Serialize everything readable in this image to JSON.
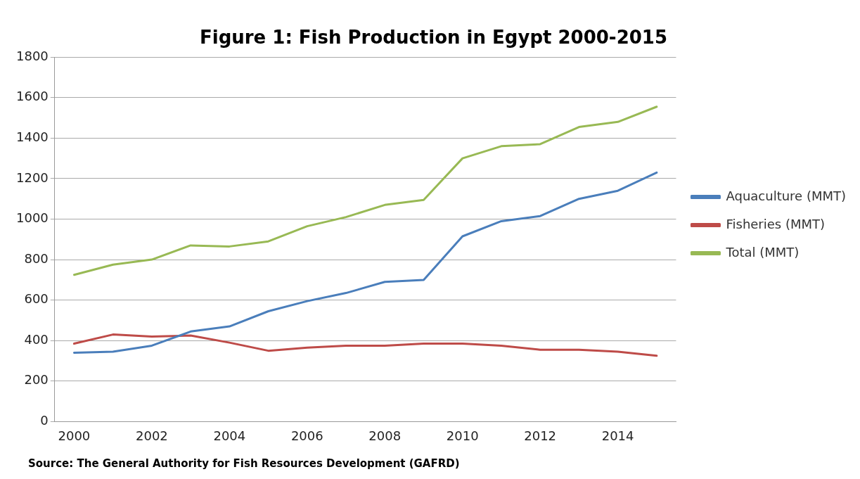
{
  "chart_data": {
    "type": "line",
    "title": "Figure 1: Fish Production in Egypt 2000-2015",
    "categories": [
      "2000",
      null,
      "2002",
      null,
      "2004",
      null,
      "2006",
      null,
      "2008",
      null,
      "2010",
      null,
      "2012",
      null,
      "2014",
      null
    ],
    "series": [
      {
        "name": "Aquaculture (MMT)",
        "color": "#4a7ebb",
        "values": [
          340,
          345,
          375,
          445,
          470,
          545,
          595,
          635,
          690,
          700,
          915,
          990,
          1015,
          1100,
          1140,
          1230
        ]
      },
      {
        "name": "Fisheries (MMT)",
        "color": "#be4b48",
        "values": [
          385,
          430,
          420,
          425,
          390,
          350,
          365,
          375,
          375,
          385,
          385,
          375,
          355,
          355,
          345,
          325
        ]
      },
      {
        "name": "Total (MMT)",
        "color": "#98b954",
        "values": [
          725,
          775,
          800,
          870,
          865,
          890,
          965,
          1010,
          1070,
          1095,
          1300,
          1360,
          1370,
          1455,
          1480,
          1555
        ]
      }
    ],
    "ylim": [
      0,
      1800
    ],
    "yticks": [
      0,
      200,
      400,
      600,
      800,
      1000,
      1200,
      1400,
      1600,
      1800
    ],
    "grid": "y",
    "legend": "right",
    "marker": "none",
    "line_style": "solid",
    "annotations": [
      "Source: The General Authority for Fish Resources Development (GAFRD)"
    ]
  }
}
